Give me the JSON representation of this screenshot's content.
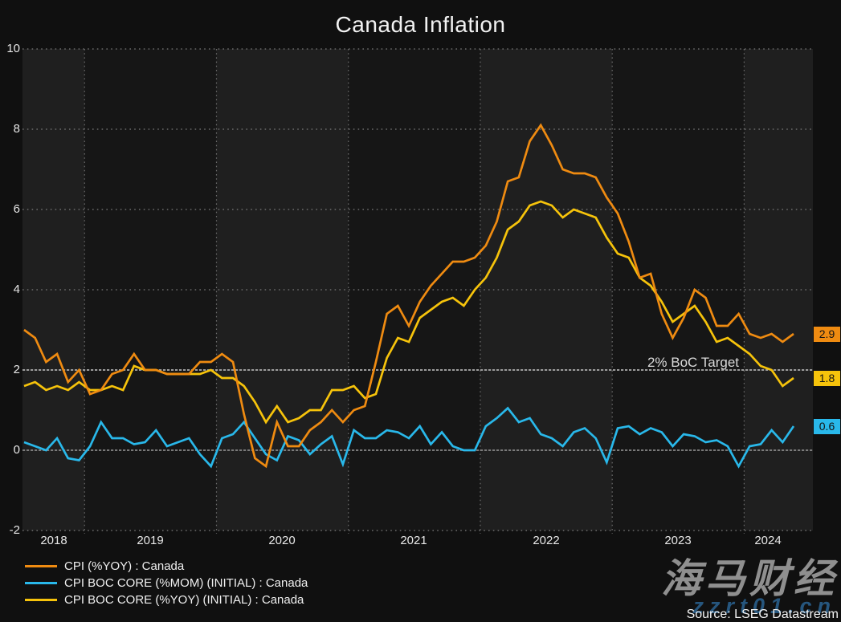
{
  "title": "Canada Inflation",
  "target_label": "2% BoC Target",
  "source": "Source: LSEG Datastream",
  "watermark": {
    "brand": "海马财经",
    "site": "zzrt01.cn"
  },
  "axes": {
    "y_ticks": [
      "10",
      "8",
      "6",
      "4",
      "2",
      "0",
      "-2"
    ],
    "x_ticks": [
      "2018",
      "2019",
      "2020",
      "2021",
      "2022",
      "2023",
      "2024"
    ]
  },
  "chart_data": {
    "type": "line",
    "title": "Canada Inflation",
    "xlabel": "",
    "ylabel": "",
    "ylim": [
      -2,
      10
    ],
    "grid": "dotted",
    "legend_position": "bottom-left",
    "target_line": {
      "value": 2,
      "label": "2% BoC Target"
    },
    "zero_line": true,
    "x": [
      "2018-07",
      "2018-08",
      "2018-09",
      "2018-10",
      "2018-11",
      "2018-12",
      "2019-01",
      "2019-02",
      "2019-03",
      "2019-04",
      "2019-05",
      "2019-06",
      "2019-07",
      "2019-08",
      "2019-09",
      "2019-10",
      "2019-11",
      "2019-12",
      "2020-01",
      "2020-02",
      "2020-03",
      "2020-04",
      "2020-05",
      "2020-06",
      "2020-07",
      "2020-08",
      "2020-09",
      "2020-10",
      "2020-11",
      "2020-12",
      "2021-01",
      "2021-02",
      "2021-03",
      "2021-04",
      "2021-05",
      "2021-06",
      "2021-07",
      "2021-08",
      "2021-09",
      "2021-10",
      "2021-11",
      "2021-12",
      "2022-01",
      "2022-02",
      "2022-03",
      "2022-04",
      "2022-05",
      "2022-06",
      "2022-07",
      "2022-08",
      "2022-09",
      "2022-10",
      "2022-11",
      "2022-12",
      "2023-01",
      "2023-02",
      "2023-03",
      "2023-04",
      "2023-05",
      "2023-06",
      "2023-07",
      "2023-08",
      "2023-09",
      "2023-10",
      "2023-11",
      "2023-12",
      "2024-01",
      "2024-02",
      "2024-03",
      "2024-04",
      "2024-05"
    ],
    "series": [
      {
        "name": "CPI (%YOY) : Canada",
        "color": "#EF8B11",
        "last_label": "2.9",
        "values": [
          3.0,
          2.8,
          2.2,
          2.4,
          1.7,
          2.0,
          1.4,
          1.5,
          1.9,
          2.0,
          2.4,
          2.0,
          2.0,
          1.9,
          1.9,
          1.9,
          2.2,
          2.2,
          2.4,
          2.2,
          0.9,
          -0.2,
          -0.4,
          0.7,
          0.1,
          0.1,
          0.5,
          0.7,
          1.0,
          0.7,
          1.0,
          1.1,
          2.2,
          3.4,
          3.6,
          3.1,
          3.7,
          4.1,
          4.4,
          4.7,
          4.7,
          4.8,
          5.1,
          5.7,
          6.7,
          6.8,
          7.7,
          8.1,
          7.6,
          7.0,
          6.9,
          6.9,
          6.8,
          6.3,
          5.9,
          5.2,
          4.3,
          4.4,
          3.4,
          2.8,
          3.3,
          4.0,
          3.8,
          3.1,
          3.1,
          3.4,
          2.9,
          2.8,
          2.9,
          2.7,
          2.9
        ]
      },
      {
        "name": "CPI BOC CORE (%MOM) (INITIAL) : Canada",
        "color": "#29B8EA",
        "last_label": "0.6",
        "values": [
          0.2,
          0.1,
          0.0,
          0.3,
          -0.2,
          -0.25,
          0.1,
          0.7,
          0.3,
          0.3,
          0.15,
          0.2,
          0.5,
          0.1,
          0.2,
          0.3,
          -0.1,
          -0.4,
          0.3,
          0.4,
          0.7,
          0.3,
          -0.1,
          -0.25,
          0.35,
          0.25,
          -0.1,
          0.15,
          0.35,
          -0.35,
          0.5,
          0.3,
          0.3,
          0.5,
          0.45,
          0.3,
          0.6,
          0.15,
          0.45,
          0.1,
          0.0,
          0.0,
          0.6,
          0.8,
          1.05,
          0.7,
          0.8,
          0.4,
          0.3,
          0.1,
          0.45,
          0.55,
          0.3,
          -0.3,
          0.55,
          0.6,
          0.4,
          0.55,
          0.45,
          0.1,
          0.4,
          0.35,
          0.2,
          0.25,
          0.1,
          -0.4,
          0.1,
          0.15,
          0.5,
          0.2,
          0.6
        ]
      },
      {
        "name": "CPI BOC CORE (%YOY) (INITIAL) : Canada",
        "color": "#F6C30B",
        "last_label": "1.8",
        "values": [
          1.6,
          1.7,
          1.5,
          1.6,
          1.5,
          1.7,
          1.5,
          1.5,
          1.6,
          1.5,
          2.1,
          2.0,
          2.0,
          1.9,
          1.9,
          1.9,
          1.9,
          2.0,
          1.8,
          1.8,
          1.6,
          1.2,
          0.7,
          1.1,
          0.7,
          0.8,
          1.0,
          1.0,
          1.5,
          1.5,
          1.6,
          1.3,
          1.4,
          2.3,
          2.8,
          2.7,
          3.3,
          3.5,
          3.7,
          3.8,
          3.6,
          4.0,
          4.3,
          4.8,
          5.5,
          5.7,
          6.1,
          6.2,
          6.1,
          5.8,
          6.0,
          5.9,
          5.8,
          5.3,
          4.9,
          4.8,
          4.3,
          4.1,
          3.7,
          3.2,
          3.4,
          3.6,
          3.2,
          2.7,
          2.8,
          2.6,
          2.4,
          2.1,
          2.0,
          1.6,
          1.8
        ]
      }
    ]
  }
}
